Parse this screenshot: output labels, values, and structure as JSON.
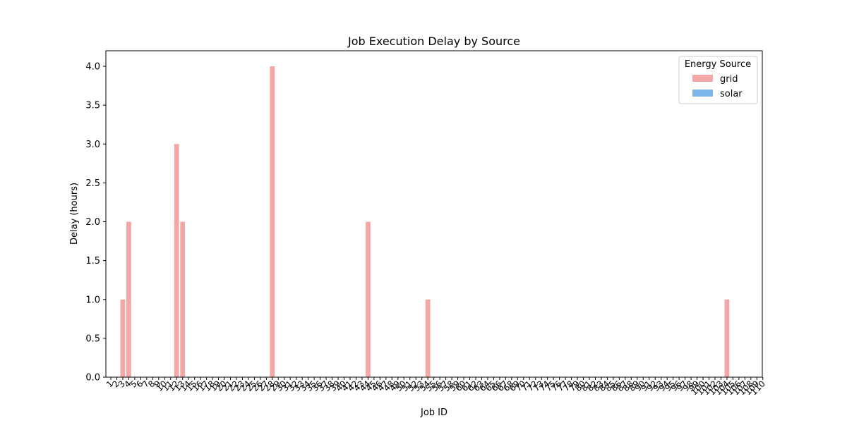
{
  "chart_data": {
    "type": "bar",
    "title": "Job Execution Delay by Source",
    "xlabel": "Job ID",
    "ylabel": "Delay (hours)",
    "ylim": [
      0,
      4.2
    ],
    "y_ticks": [
      "0.0",
      "0.5",
      "1.0",
      "1.5",
      "2.0",
      "2.5",
      "3.0",
      "3.5",
      "4.0"
    ],
    "y_tick_values": [
      0,
      0.5,
      1,
      1.5,
      2,
      2.5,
      3,
      3.5,
      4
    ],
    "categories_range": [
      1,
      110
    ],
    "legend": {
      "title": "Energy Source",
      "placement": "top-right",
      "entries": [
        "grid",
        "solar"
      ]
    },
    "colors": {
      "grid": "#f4a7a7",
      "solar": "#7ab6ea"
    },
    "series": [
      {
        "name": "grid",
        "points": [
          {
            "job": 3,
            "value": 1.0
          },
          {
            "job": 4,
            "value": 2.0
          },
          {
            "job": 12,
            "value": 3.0
          },
          {
            "job": 13,
            "value": 2.0
          },
          {
            "job": 28,
            "value": 4.0
          },
          {
            "job": 44,
            "value": 2.0
          },
          {
            "job": 54,
            "value": 1.0
          },
          {
            "job": 104,
            "value": 1.0
          }
        ]
      },
      {
        "name": "solar",
        "points": []
      }
    ]
  }
}
